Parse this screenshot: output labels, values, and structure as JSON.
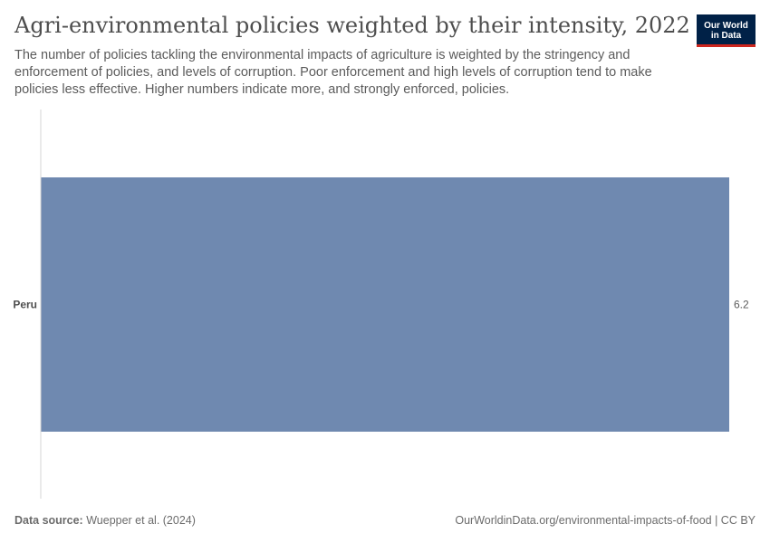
{
  "header": {
    "title": "Agri-environmental policies weighted by their intensity, 2022",
    "subtitle": "The number of policies tackling the environmental impacts of agriculture is weighted by the stringency and enforcement of policies, and levels of corruption. Poor enforcement and high levels of corruption tend to make policies less effective. Higher numbers indicate more, and strongly enforced, policies.",
    "logo_line1": "Our World",
    "logo_line2": "in Data"
  },
  "chart_data": {
    "type": "bar",
    "orientation": "horizontal",
    "categories": [
      "Peru"
    ],
    "values": [
      6.2
    ],
    "value_labels": [
      "6.2"
    ],
    "xlim": [
      0,
      6.2
    ],
    "bar_color": "#6f89b0",
    "grid": false
  },
  "footer": {
    "source_label": "Data source:",
    "source_text": "Wuepper et al. (2024)",
    "url_license": "OurWorldinData.org/environmental-impacts-of-food | CC BY"
  }
}
